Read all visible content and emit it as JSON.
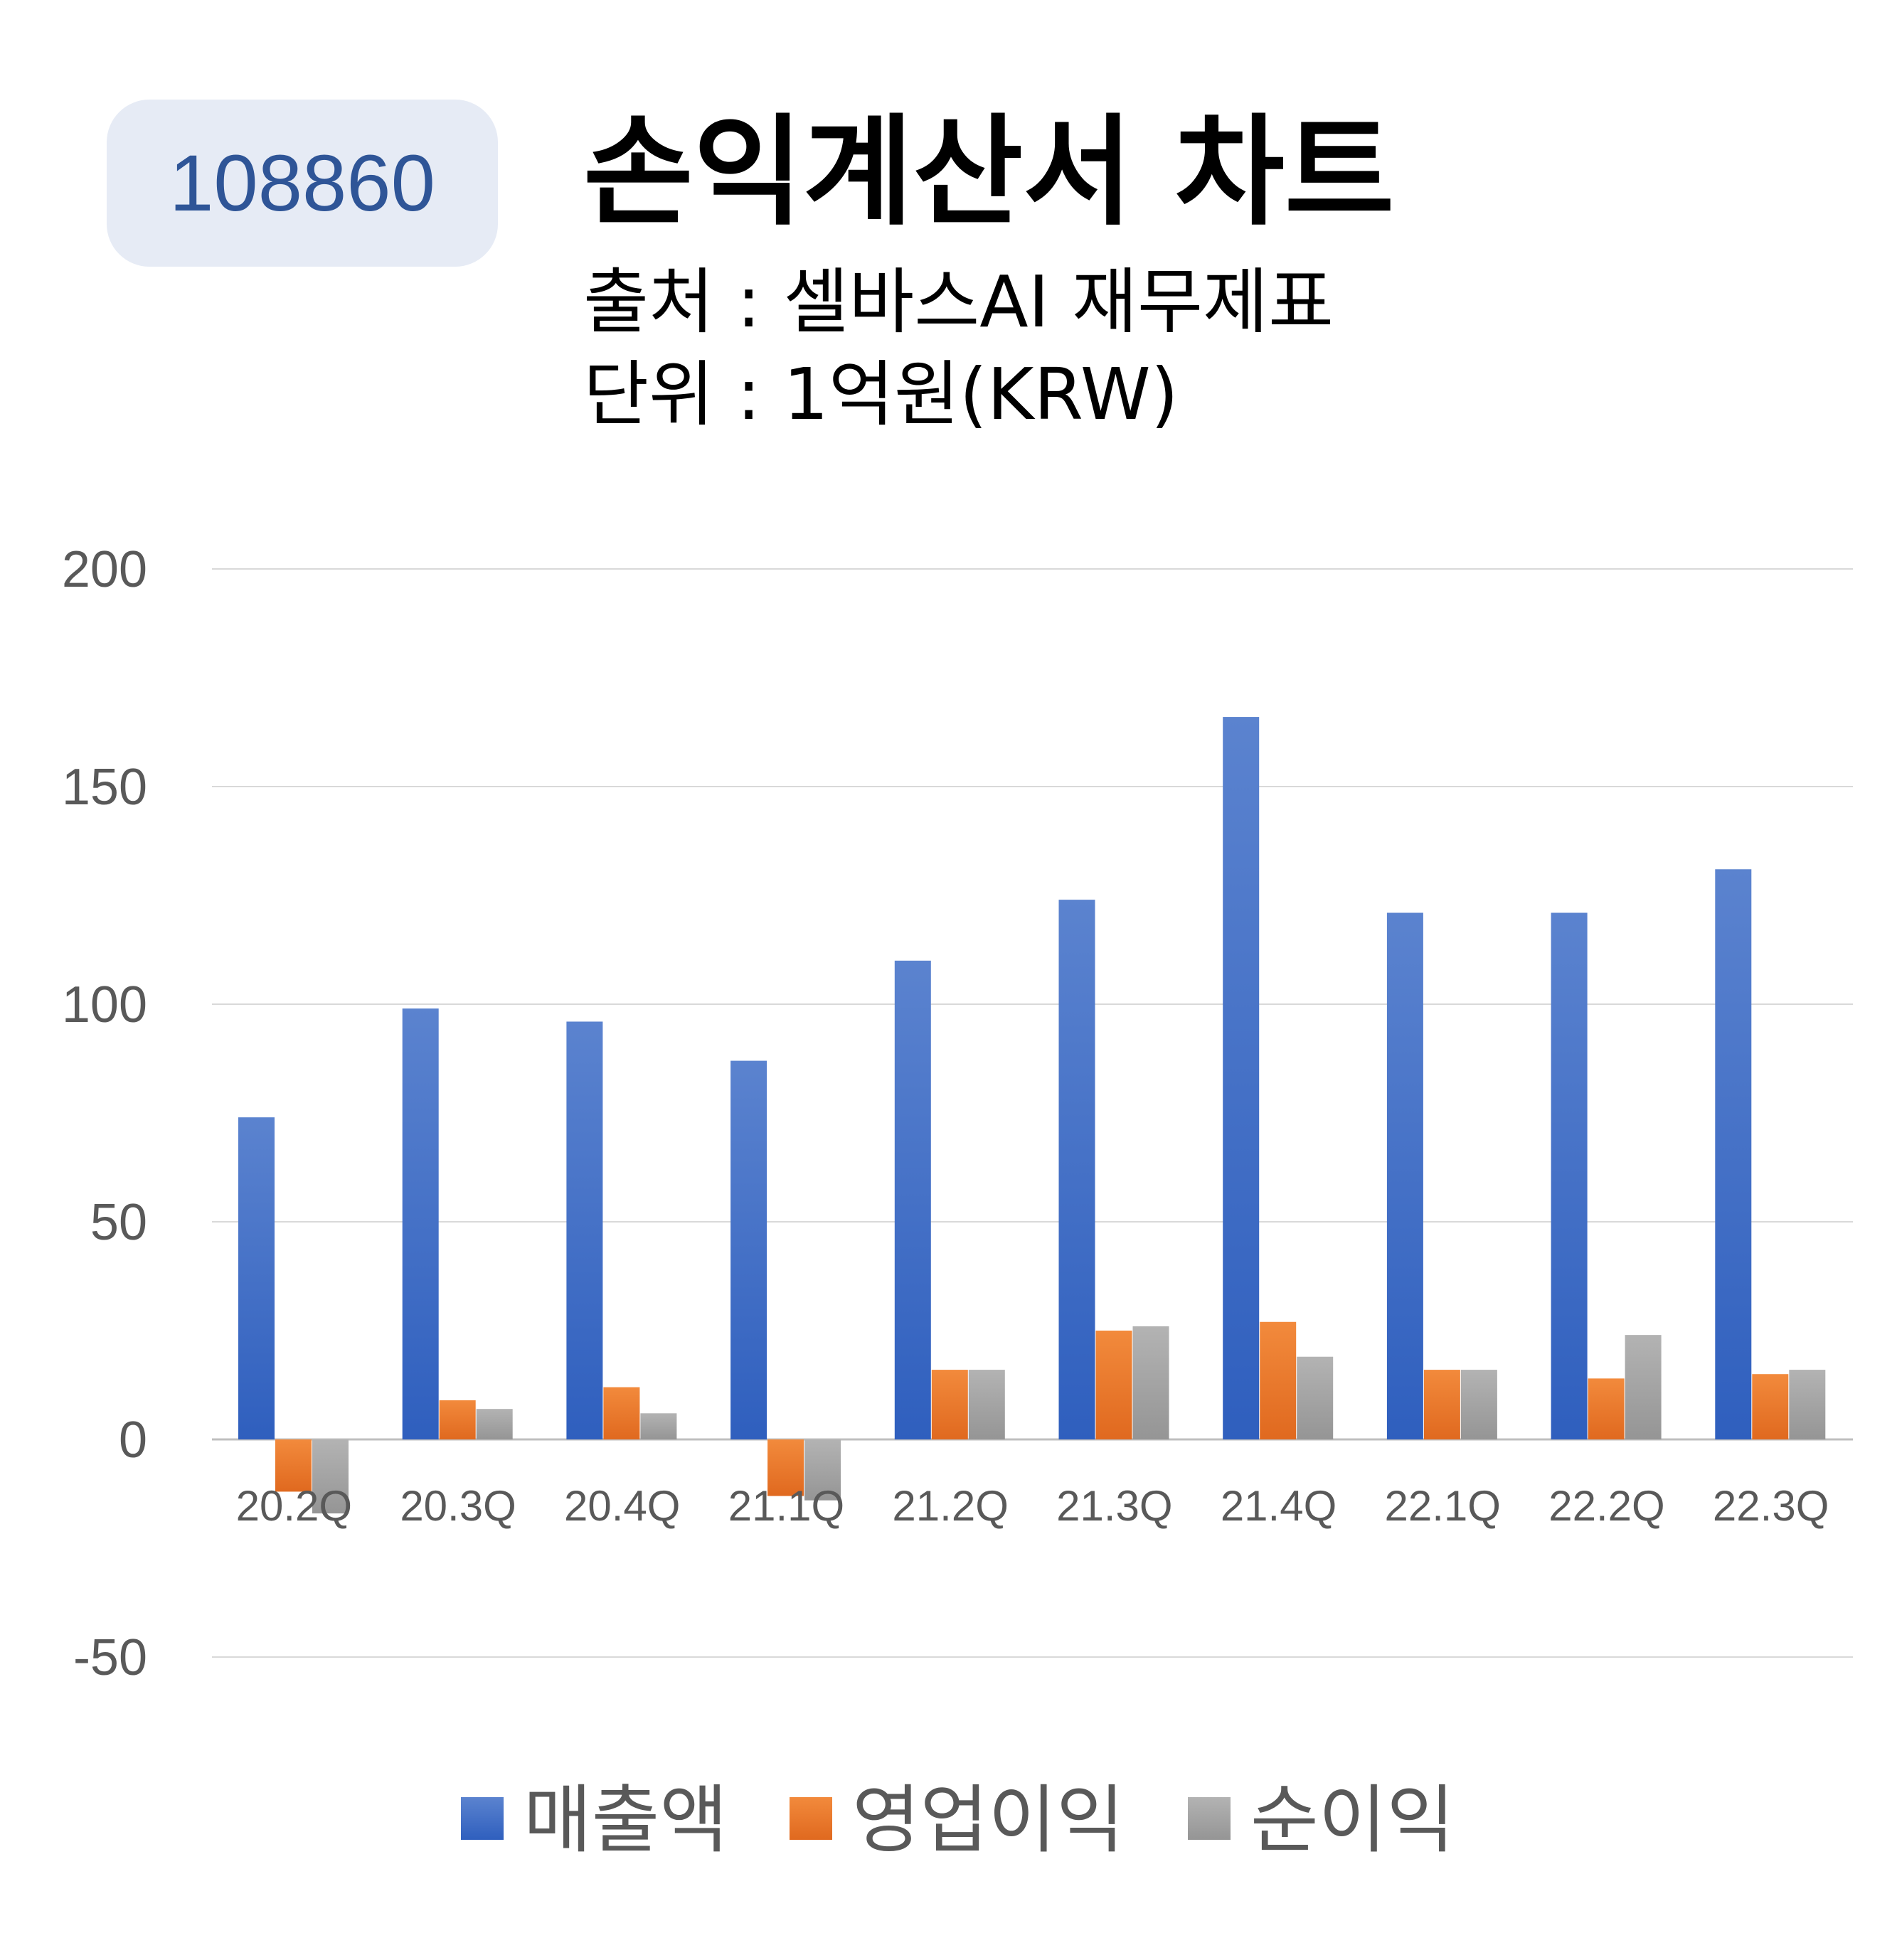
{
  "header": {
    "code": "108860",
    "title": "손익계산서 차트",
    "source": "출처 : 셀바스AI 재무제표",
    "unit": "단위 : 1억원(KRW)"
  },
  "chart_data": {
    "type": "bar",
    "categories": [
      "20.2Q",
      "20.3Q",
      "20.4Q",
      "21.1Q",
      "21.2Q",
      "21.3Q",
      "21.4Q",
      "22.1Q",
      "22.2Q",
      "22.3Q"
    ],
    "series": [
      {
        "name": "매출액",
        "color": "#4472c4",
        "values": [
          74,
          99,
          96,
          87,
          110,
          124,
          166,
          121,
          121,
          131
        ]
      },
      {
        "name": "영업이익",
        "color": "#ed7d31",
        "values": [
          -12,
          9,
          12,
          -13,
          16,
          25,
          27,
          16,
          14,
          15
        ]
      },
      {
        "name": "순이익",
        "color": "#a5a5a5",
        "values": [
          -17,
          7,
          6,
          -14,
          16,
          26,
          19,
          16,
          24,
          16
        ]
      }
    ],
    "yticks": [
      200,
      150,
      100,
      50,
      0,
      -50
    ],
    "ylim": [
      -50,
      200
    ],
    "grid": true,
    "legend_position": "bottom"
  }
}
